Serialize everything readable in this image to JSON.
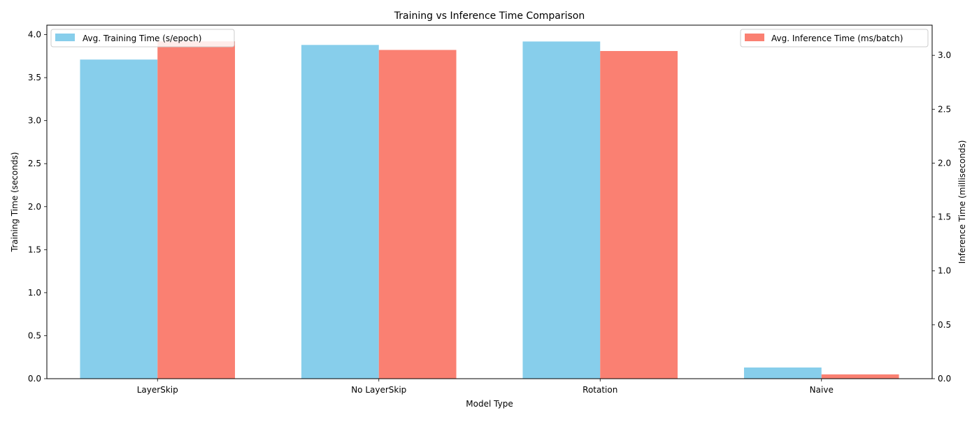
{
  "chart_data": {
    "type": "bar",
    "title": "Training vs Inference Time Comparison",
    "xlabel": "Model Type",
    "ylabel_left": "Training Time (seconds)",
    "ylabel_right": "Inference Time (milliseconds)",
    "categories": [
      "LayerSkip",
      "No LayerSkip",
      "Rotation",
      "Naive"
    ],
    "series": [
      {
        "name": "Avg. Training Time (s/epoch)",
        "axis": "left",
        "color": "#87CEEB",
        "values": [
          3.71,
          3.88,
          3.92,
          0.13
        ]
      },
      {
        "name": "Avg. Inference Time (ms/batch)",
        "axis": "right",
        "color": "#FA8072",
        "values": [
          3.13,
          3.05,
          3.04,
          0.04
        ]
      }
    ],
    "ylim_left": [
      0,
      4.11
    ],
    "yticks_left": [
      "0.0",
      "0.5",
      "1.0",
      "1.5",
      "2.0",
      "2.5",
      "3.0",
      "3.5",
      "4.0"
    ],
    "ylim_right": [
      0,
      3.28
    ],
    "yticks_right": [
      "0.0",
      "0.5",
      "1.0",
      "1.5",
      "2.0",
      "2.5",
      "3.0"
    ],
    "grid": false,
    "legend_left_placement": "top-left",
    "legend_right_placement": "top-right"
  }
}
